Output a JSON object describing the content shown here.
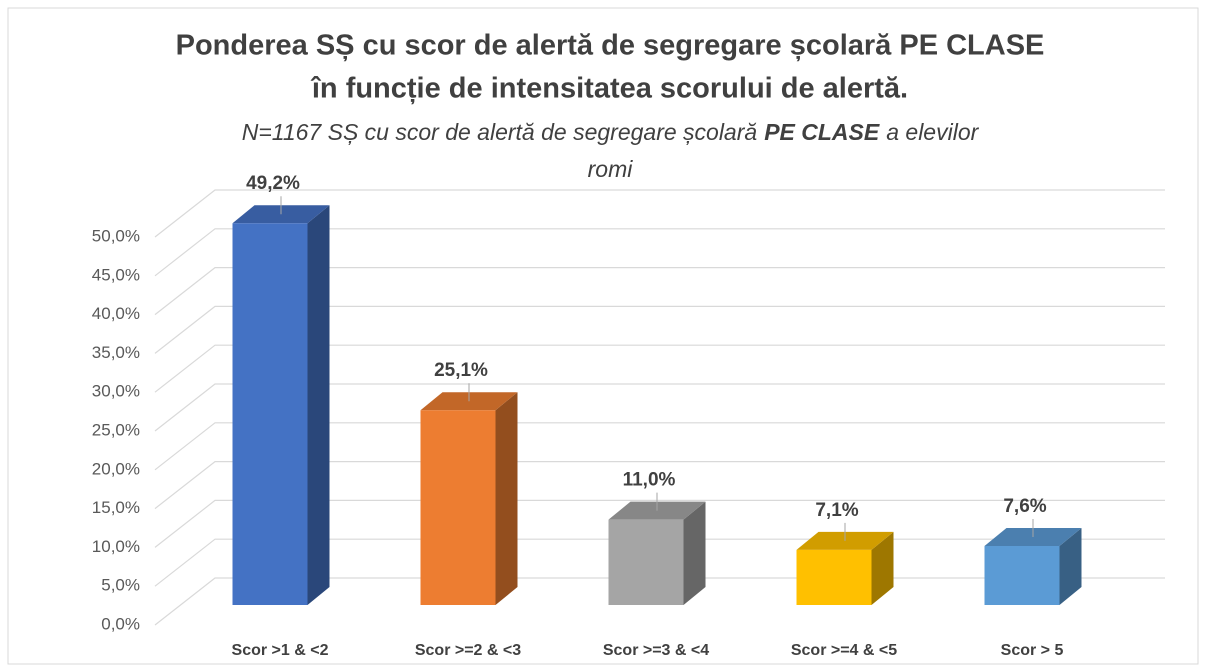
{
  "chart_data": {
    "type": "bar3d",
    "title": [
      "Ponderea SȘ cu scor de alertă de segregare școlară PE CLASE",
      "în funcție de intensitatea scorului de alertă."
    ],
    "subtitle": [
      "N=1167 SȘ cu scor de alertă de segregare școlară",
      "PE CLASE",
      "a elevilor",
      "romi"
    ],
    "categories": [
      "Scor >1 & <2",
      "Scor >=2 & <3",
      "Scor >=3 & <4",
      "Scor >=4 & <5",
      "Scor > 5"
    ],
    "values": [
      49.2,
      25.1,
      11.0,
      7.1,
      7.6
    ],
    "value_labels": [
      "49,2%",
      "25,1%",
      "11,0%",
      "7,1%",
      "7,6%"
    ],
    "colors": [
      "#4472c4",
      "#ed7d31",
      "#a5a5a5",
      "#ffc000",
      "#5b9bd5"
    ],
    "ylim": [
      0,
      50
    ],
    "yticks": [
      {
        "value": 0,
        "label": "0,0%"
      },
      {
        "value": 5,
        "label": "5,0%"
      },
      {
        "value": 10,
        "label": "10,0%"
      },
      {
        "value": 15,
        "label": "15,0%"
      },
      {
        "value": 20,
        "label": "20,0%"
      },
      {
        "value": 25,
        "label": "25,0%"
      },
      {
        "value": 30,
        "label": "30,0%"
      },
      {
        "value": 35,
        "label": "35,0%"
      },
      {
        "value": 40,
        "label": "40,0%"
      },
      {
        "value": 45,
        "label": "45,0%"
      },
      {
        "value": 50,
        "label": "50,0%"
      }
    ],
    "grid": true
  }
}
